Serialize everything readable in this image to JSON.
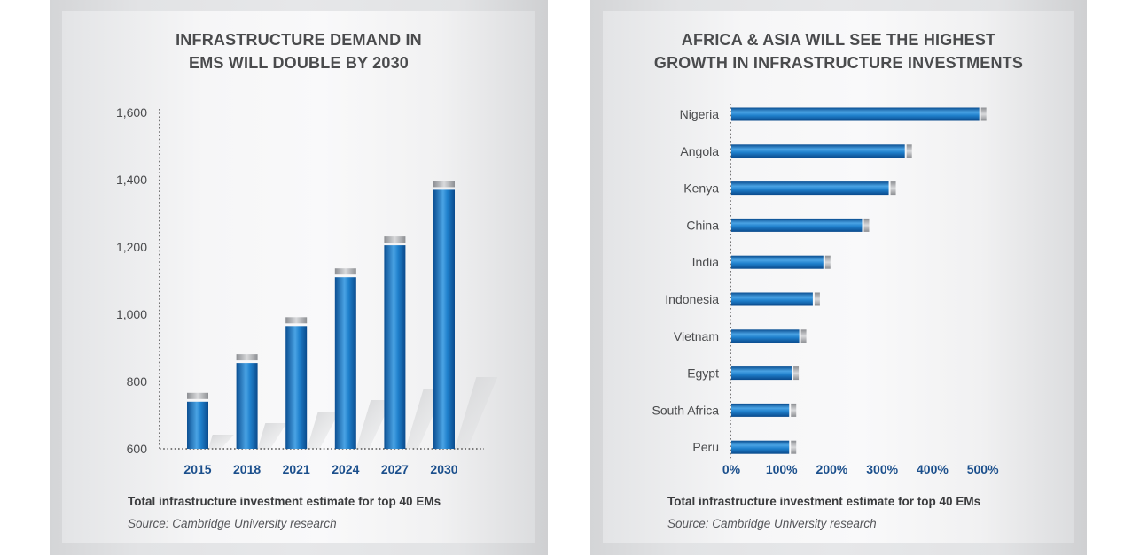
{
  "left_panel": {
    "title_line1": "INFRASTRUCTURE DEMAND IN",
    "title_line2": "EMS WILL DOUBLE BY 2030",
    "caption": "Total infrastructure investment estimate for top 40 EMs",
    "source": "Source: Cambridge University research"
  },
  "right_panel": {
    "title_line1": "AFRICA & ASIA WILL SEE THE HIGHEST",
    "title_line2": "GROWTH IN INFRASTRUCTURE INVESTMENTS",
    "caption": "Total infrastructure investment estimate for top 40 EMs",
    "source": "Source: Cambridge University research"
  },
  "colors": {
    "bar_dark": "#0d5fa6",
    "bar_light": "#5fb0ea",
    "tick_label_blue": "#1b4f8c",
    "axis_label": "#4a4b4d",
    "cap_gray": "#a7a9ac"
  },
  "chart_data": [
    {
      "type": "bar",
      "orientation": "vertical",
      "title": "INFRASTRUCTURE DEMAND IN EMS WILL DOUBLE BY 2030",
      "categories": [
        "2015",
        "2018",
        "2021",
        "2024",
        "2027",
        "2030"
      ],
      "values": [
        740,
        855,
        965,
        1110,
        1205,
        1370
      ],
      "ylim": [
        600,
        1600
      ],
      "yticks": [
        600,
        800,
        1000,
        1200,
        1400,
        1600
      ],
      "ytick_labels": [
        "600",
        "800",
        "1,000",
        "1,200",
        "1,400",
        "1,600"
      ],
      "xlabel": "",
      "ylabel": "",
      "grid": false
    },
    {
      "type": "bar",
      "orientation": "horizontal",
      "title": "AFRICA & ASIA WILL SEE THE HIGHEST GROWTH IN INFRASTRUCTURE INVESTMENTS",
      "categories": [
        "Nigeria",
        "Angola",
        "Kenya",
        "China",
        "India",
        "Indonesia",
        "Vietnam",
        "Egypt",
        "South Africa",
        "Peru"
      ],
      "values": [
        493,
        345,
        313,
        260,
        183,
        162,
        135,
        120,
        115,
        115
      ],
      "xlim": [
        0,
        550
      ],
      "xticks": [
        0,
        100,
        200,
        300,
        400,
        500
      ],
      "xtick_labels": [
        "0%",
        "100%",
        "200%",
        "300%",
        "400%",
        "500%"
      ],
      "xlabel": "",
      "ylabel": "",
      "grid": false
    }
  ]
}
